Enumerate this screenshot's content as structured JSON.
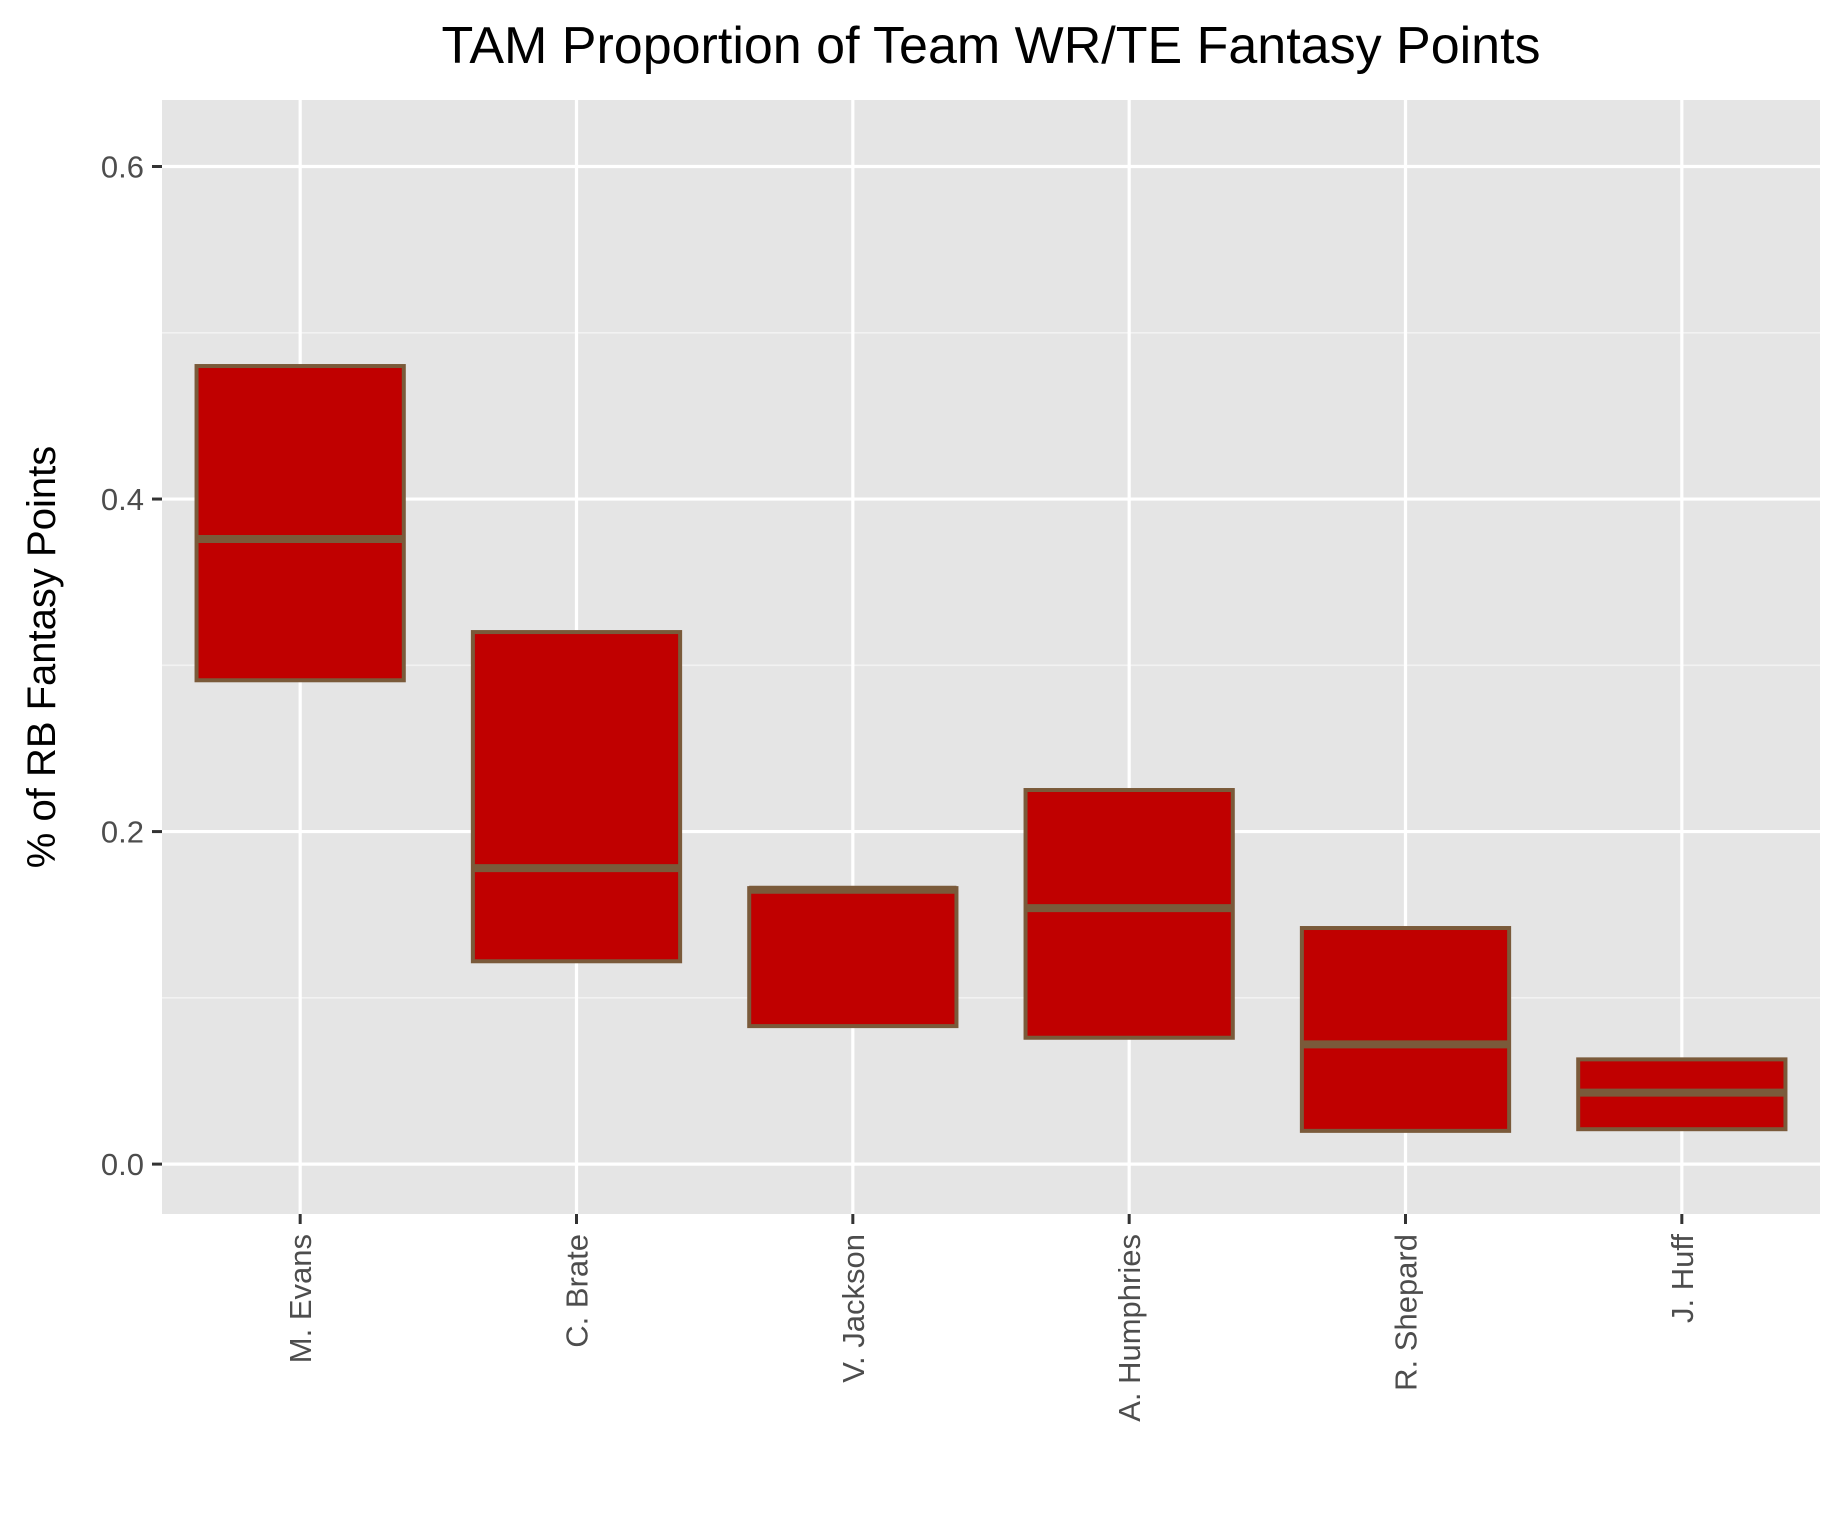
{
  "chart_data": {
    "type": "box",
    "title": "TAM Proportion of Team WR/TE Fantasy Points",
    "xlabel": "",
    "ylabel": "% of RB Fantasy Points",
    "ylim": [
      -0.03,
      0.64
    ],
    "yticks": [
      0.0,
      0.2,
      0.4,
      0.6
    ],
    "ytick_labels": [
      "0.0",
      "0.2",
      "0.4",
      "0.6"
    ],
    "grid": true,
    "legend": "none",
    "categories": [
      "M. Evans",
      "C. Brate",
      "V. Jackson",
      "A. Humphries",
      "R. Shepard",
      "J. Huff"
    ],
    "boxes": [
      {
        "name": "M. Evans",
        "q1": 0.291,
        "median": 0.376,
        "q3": 0.48
      },
      {
        "name": "C. Brate",
        "q1": 0.122,
        "median": 0.178,
        "q3": 0.32
      },
      {
        "name": "V. Jackson",
        "q1": 0.083,
        "median": 0.165,
        "q3": 0.166
      },
      {
        "name": "A. Humphries",
        "q1": 0.076,
        "median": 0.154,
        "q3": 0.225
      },
      {
        "name": "R. Shepard",
        "q1": 0.02,
        "median": 0.072,
        "q3": 0.142
      },
      {
        "name": "J. Huff",
        "q1": 0.021,
        "median": 0.043,
        "q3": 0.063
      }
    ],
    "colors": {
      "box_fill": "#c00000",
      "box_stroke": "#7a5a3a",
      "panel_background": "#e5e5e5",
      "grid_major": "#ffffff",
      "grid_minor": "#f2f2f2",
      "tick_label": "#4d4d4d",
      "tick_mark": "#333333"
    }
  }
}
